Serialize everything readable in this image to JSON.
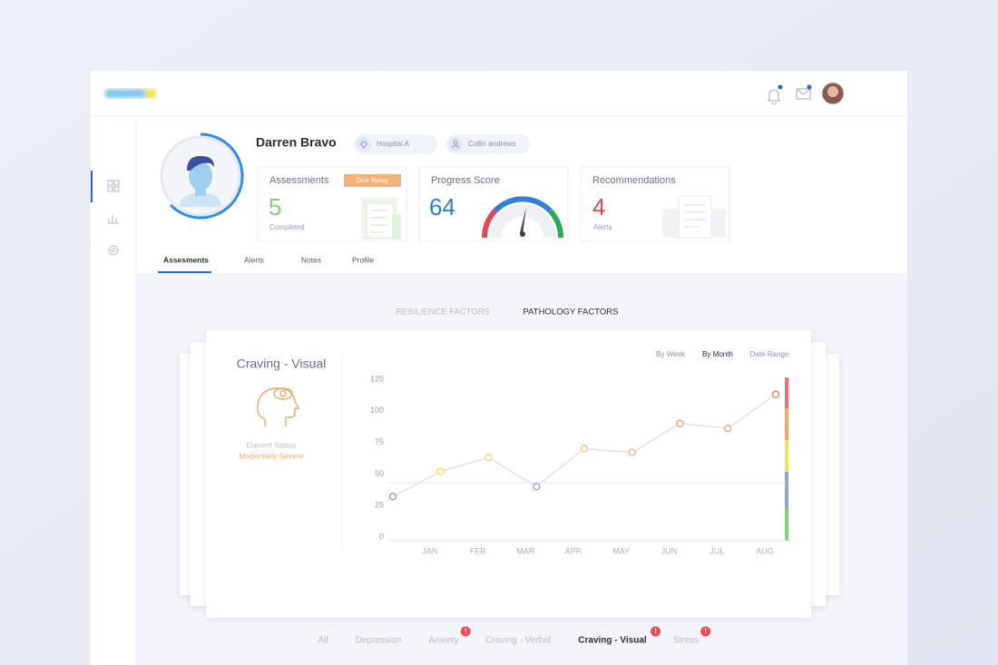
{
  "profile": {
    "name": "Darren Bravo",
    "location": "Hospital A",
    "clinician": "Collin andrews"
  },
  "cards": {
    "assessments": {
      "title": "Assessments",
      "badge": "Due Today",
      "value": "5",
      "caption": "Completed"
    },
    "progress": {
      "title": "Progress Score",
      "value": "64"
    },
    "recommendations": {
      "title": "Recommendations",
      "value": "4",
      "caption": "Alerts"
    }
  },
  "tabs": [
    "Assesments",
    "Alerts",
    "Notes",
    "Profile"
  ],
  "factor_tabs": [
    "RESILIENCE FACTORS",
    "PATHOLOGY FACTORS"
  ],
  "panel": {
    "title": "Craving - Visual",
    "status_label": "Current Status",
    "status": "Moderately Severe"
  },
  "range_options": [
    "By Week",
    "By Month",
    "Date Range"
  ],
  "chart_data": {
    "type": "line",
    "categories": [
      null,
      "JAN",
      "FEB",
      "MAR",
      "APR",
      "MAY",
      "JUN",
      "JUL",
      "AUG"
    ],
    "values": [
      32,
      52,
      63,
      40,
      70,
      67,
      90,
      86,
      113
    ],
    "point_colors": [
      "#8f9bb3",
      "#f2e05a",
      "#f2d55a",
      "#7fa7c9",
      "#f2c46a",
      "#f2b36a",
      "#f0a060",
      "#f0a060",
      "#ee7a60"
    ],
    "color": "#e4dbe6",
    "ylim": [
      0,
      125
    ],
    "yticks": [
      0,
      25,
      50,
      75,
      100,
      125
    ],
    "reference_line": 43
  },
  "bottom_tabs": [
    {
      "label": "All"
    },
    {
      "label": "Depression"
    },
    {
      "label": "Anxiety",
      "alert": "!"
    },
    {
      "label": "Craving - Verbal"
    },
    {
      "label": "Craving - Visual",
      "alert": "!"
    },
    {
      "label": "Stress",
      "alert": "!"
    }
  ]
}
